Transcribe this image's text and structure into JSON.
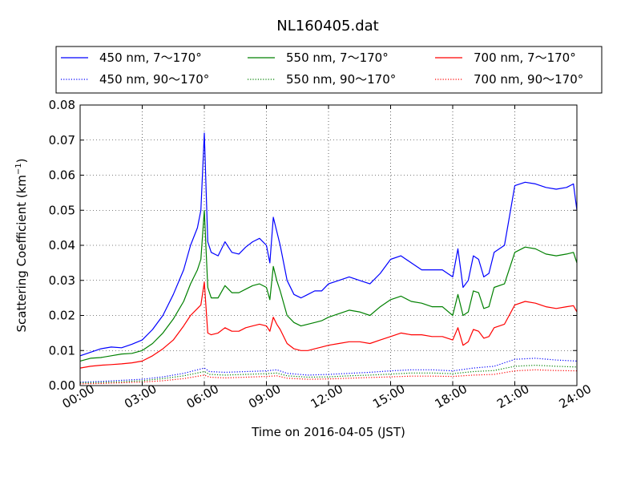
{
  "chart_data": {
    "type": "line",
    "title": "NL160405.dat",
    "xlabel": "Time on 2016-04-05 (JST)",
    "ylabel_main": "Scattering Coefficient (km",
    "ylabel_sup": "−1",
    "ylabel_close": ")",
    "xlim": [
      "00:00",
      "24:00"
    ],
    "ylim": [
      0.0,
      0.08
    ],
    "x_ticks": [
      "00:00",
      "03:00",
      "06:00",
      "09:00",
      "12:00",
      "15:00",
      "18:00",
      "21:00",
      "24:00"
    ],
    "y_ticks": [
      "0.00",
      "0.01",
      "0.02",
      "0.03",
      "0.04",
      "0.05",
      "0.06",
      "0.07",
      "0.08"
    ],
    "grid": true,
    "legend_position": "top",
    "series": [
      {
        "name": "450 nm, 7～170°",
        "color": "#0000ff",
        "style": "solid",
        "x": [
          "00:00",
          "00:30",
          "01:00",
          "01:30",
          "02:00",
          "02:30",
          "03:00",
          "03:30",
          "04:00",
          "04:30",
          "05:00",
          "05:20",
          "05:40",
          "05:50",
          "06:00",
          "06:10",
          "06:20",
          "06:40",
          "07:00",
          "07:20",
          "07:40",
          "08:00",
          "08:20",
          "08:40",
          "09:00",
          "09:10",
          "09:20",
          "09:30",
          "09:40",
          "10:00",
          "10:20",
          "10:40",
          "11:00",
          "11:20",
          "11:40",
          "12:00",
          "12:30",
          "13:00",
          "13:30",
          "14:00",
          "14:30",
          "15:00",
          "15:30",
          "16:00",
          "16:30",
          "17:00",
          "17:30",
          "18:00",
          "18:15",
          "18:30",
          "18:45",
          "19:00",
          "19:15",
          "19:30",
          "19:45",
          "20:00",
          "20:30",
          "21:00",
          "21:30",
          "22:00",
          "22:30",
          "23:00",
          "23:30",
          "23:50",
          "24:00"
        ],
        "y": [
          0.0085,
          0.0095,
          0.0105,
          0.011,
          0.0108,
          0.0118,
          0.013,
          0.016,
          0.02,
          0.026,
          0.033,
          0.04,
          0.045,
          0.05,
          0.072,
          0.041,
          0.038,
          0.037,
          0.041,
          0.038,
          0.0375,
          0.0395,
          0.041,
          0.042,
          0.04,
          0.035,
          0.048,
          0.044,
          0.04,
          0.03,
          0.026,
          0.025,
          0.026,
          0.027,
          0.027,
          0.029,
          0.03,
          0.031,
          0.03,
          0.029,
          0.032,
          0.036,
          0.037,
          0.035,
          0.033,
          0.033,
          0.033,
          0.031,
          0.039,
          0.028,
          0.03,
          0.037,
          0.036,
          0.031,
          0.032,
          0.038,
          0.04,
          0.057,
          0.058,
          0.0575,
          0.0565,
          0.056,
          0.0565,
          0.0575,
          0.05
        ]
      },
      {
        "name": "450 nm, 90～170°",
        "color": "#0000ff",
        "style": "dotted",
        "x": [
          "00:00",
          "01:00",
          "02:00",
          "03:00",
          "04:00",
          "05:00",
          "06:00",
          "06:15",
          "07:00",
          "08:00",
          "09:00",
          "09:30",
          "10:00",
          "11:00",
          "12:00",
          "13:00",
          "14:00",
          "15:00",
          "16:00",
          "17:00",
          "18:00",
          "19:00",
          "20:00",
          "21:00",
          "22:00",
          "23:00",
          "24:00"
        ],
        "y": [
          0.001,
          0.0012,
          0.0015,
          0.0018,
          0.0025,
          0.0035,
          0.005,
          0.004,
          0.0038,
          0.004,
          0.0042,
          0.0045,
          0.0035,
          0.003,
          0.0032,
          0.0035,
          0.0038,
          0.0042,
          0.0045,
          0.0045,
          0.0042,
          0.005,
          0.0055,
          0.0075,
          0.0078,
          0.0073,
          0.007
        ]
      },
      {
        "name": "550 nm, 7～170°",
        "color": "#008000",
        "style": "solid",
        "x": [
          "00:00",
          "00:30",
          "01:00",
          "01:30",
          "02:00",
          "02:30",
          "03:00",
          "03:30",
          "04:00",
          "04:30",
          "05:00",
          "05:20",
          "05:40",
          "05:50",
          "06:00",
          "06:10",
          "06:20",
          "06:40",
          "07:00",
          "07:20",
          "07:40",
          "08:00",
          "08:20",
          "08:40",
          "09:00",
          "09:10",
          "09:20",
          "09:30",
          "09:40",
          "10:00",
          "10:20",
          "10:40",
          "11:00",
          "11:20",
          "11:40",
          "12:00",
          "12:30",
          "13:00",
          "13:30",
          "14:00",
          "14:30",
          "15:00",
          "15:30",
          "16:00",
          "16:30",
          "17:00",
          "17:30",
          "18:00",
          "18:15",
          "18:30",
          "18:45",
          "19:00",
          "19:15",
          "19:30",
          "19:45",
          "20:00",
          "20:30",
          "21:00",
          "21:30",
          "22:00",
          "22:30",
          "23:00",
          "23:30",
          "23:50",
          "24:00"
        ],
        "y": [
          0.007,
          0.0078,
          0.008,
          0.0085,
          0.009,
          0.0092,
          0.01,
          0.012,
          0.015,
          0.019,
          0.024,
          0.029,
          0.033,
          0.036,
          0.05,
          0.028,
          0.025,
          0.025,
          0.0285,
          0.0265,
          0.0265,
          0.0275,
          0.0285,
          0.029,
          0.028,
          0.0245,
          0.034,
          0.03,
          0.027,
          0.02,
          0.018,
          0.017,
          0.0175,
          0.018,
          0.0185,
          0.0195,
          0.0205,
          0.0215,
          0.021,
          0.02,
          0.0225,
          0.0245,
          0.0255,
          0.024,
          0.0235,
          0.0225,
          0.0225,
          0.02,
          0.026,
          0.02,
          0.021,
          0.027,
          0.0265,
          0.022,
          0.0225,
          0.028,
          0.029,
          0.038,
          0.0395,
          0.039,
          0.0375,
          0.037,
          0.0375,
          0.038,
          0.035
        ]
      },
      {
        "name": "550 nm, 90～170°",
        "color": "#008000",
        "style": "dotted",
        "x": [
          "00:00",
          "01:00",
          "02:00",
          "03:00",
          "04:00",
          "05:00",
          "06:00",
          "06:15",
          "07:00",
          "08:00",
          "09:00",
          "09:30",
          "10:00",
          "11:00",
          "12:00",
          "13:00",
          "14:00",
          "15:00",
          "16:00",
          "17:00",
          "18:00",
          "19:00",
          "20:00",
          "21:00",
          "22:00",
          "23:00",
          "24:00"
        ],
        "y": [
          0.0008,
          0.0009,
          0.0011,
          0.0014,
          0.002,
          0.0028,
          0.004,
          0.0032,
          0.003,
          0.0032,
          0.0034,
          0.0036,
          0.0028,
          0.0024,
          0.0025,
          0.0028,
          0.003,
          0.0033,
          0.0036,
          0.0036,
          0.0034,
          0.004,
          0.0043,
          0.0055,
          0.0058,
          0.0055,
          0.0053
        ]
      },
      {
        "name": "700 nm, 7～170°",
        "color": "#ff0000",
        "style": "solid",
        "x": [
          "00:00",
          "00:30",
          "01:00",
          "01:30",
          "02:00",
          "02:30",
          "03:00",
          "03:30",
          "04:00",
          "04:30",
          "05:00",
          "05:20",
          "05:40",
          "05:50",
          "06:00",
          "06:10",
          "06:20",
          "06:40",
          "07:00",
          "07:20",
          "07:40",
          "08:00",
          "08:20",
          "08:40",
          "09:00",
          "09:10",
          "09:20",
          "09:30",
          "09:40",
          "10:00",
          "10:20",
          "10:40",
          "11:00",
          "11:20",
          "11:40",
          "12:00",
          "12:30",
          "13:00",
          "13:30",
          "14:00",
          "14:30",
          "15:00",
          "15:30",
          "16:00",
          "16:30",
          "17:00",
          "17:30",
          "18:00",
          "18:15",
          "18:30",
          "18:45",
          "19:00",
          "19:15",
          "19:30",
          "19:45",
          "20:00",
          "20:30",
          "21:00",
          "21:30",
          "22:00",
          "22:30",
          "23:00",
          "23:30",
          "23:50",
          "24:00"
        ],
        "y": [
          0.005,
          0.0055,
          0.0058,
          0.006,
          0.0062,
          0.0065,
          0.007,
          0.0085,
          0.0105,
          0.013,
          0.017,
          0.02,
          0.022,
          0.023,
          0.0295,
          0.015,
          0.0145,
          0.015,
          0.0165,
          0.0155,
          0.0155,
          0.0165,
          0.017,
          0.0175,
          0.017,
          0.0155,
          0.0195,
          0.0175,
          0.016,
          0.012,
          0.0105,
          0.01,
          0.01,
          0.0105,
          0.011,
          0.0115,
          0.012,
          0.0125,
          0.0125,
          0.012,
          0.013,
          0.014,
          0.015,
          0.0145,
          0.0145,
          0.014,
          0.014,
          0.013,
          0.0165,
          0.0115,
          0.0125,
          0.016,
          0.0155,
          0.0135,
          0.014,
          0.0165,
          0.0175,
          0.023,
          0.024,
          0.0235,
          0.0225,
          0.022,
          0.0225,
          0.0228,
          0.021
        ]
      },
      {
        "name": "700 nm, 90～170°",
        "color": "#ff0000",
        "style": "dotted",
        "x": [
          "00:00",
          "01:00",
          "02:00",
          "03:00",
          "04:00",
          "05:00",
          "06:00",
          "06:15",
          "07:00",
          "08:00",
          "09:00",
          "09:30",
          "10:00",
          "11:00",
          "12:00",
          "13:00",
          "14:00",
          "15:00",
          "16:00",
          "17:00",
          "18:00",
          "19:00",
          "20:00",
          "21:00",
          "22:00",
          "23:00",
          "24:00"
        ],
        "y": [
          0.0005,
          0.0006,
          0.0008,
          0.001,
          0.0014,
          0.002,
          0.003,
          0.0024,
          0.0022,
          0.0024,
          0.0026,
          0.0028,
          0.0021,
          0.0018,
          0.0019,
          0.0021,
          0.0023,
          0.0025,
          0.0027,
          0.0027,
          0.0026,
          0.003,
          0.0032,
          0.0042,
          0.0045,
          0.0043,
          0.0042
        ]
      }
    ]
  }
}
